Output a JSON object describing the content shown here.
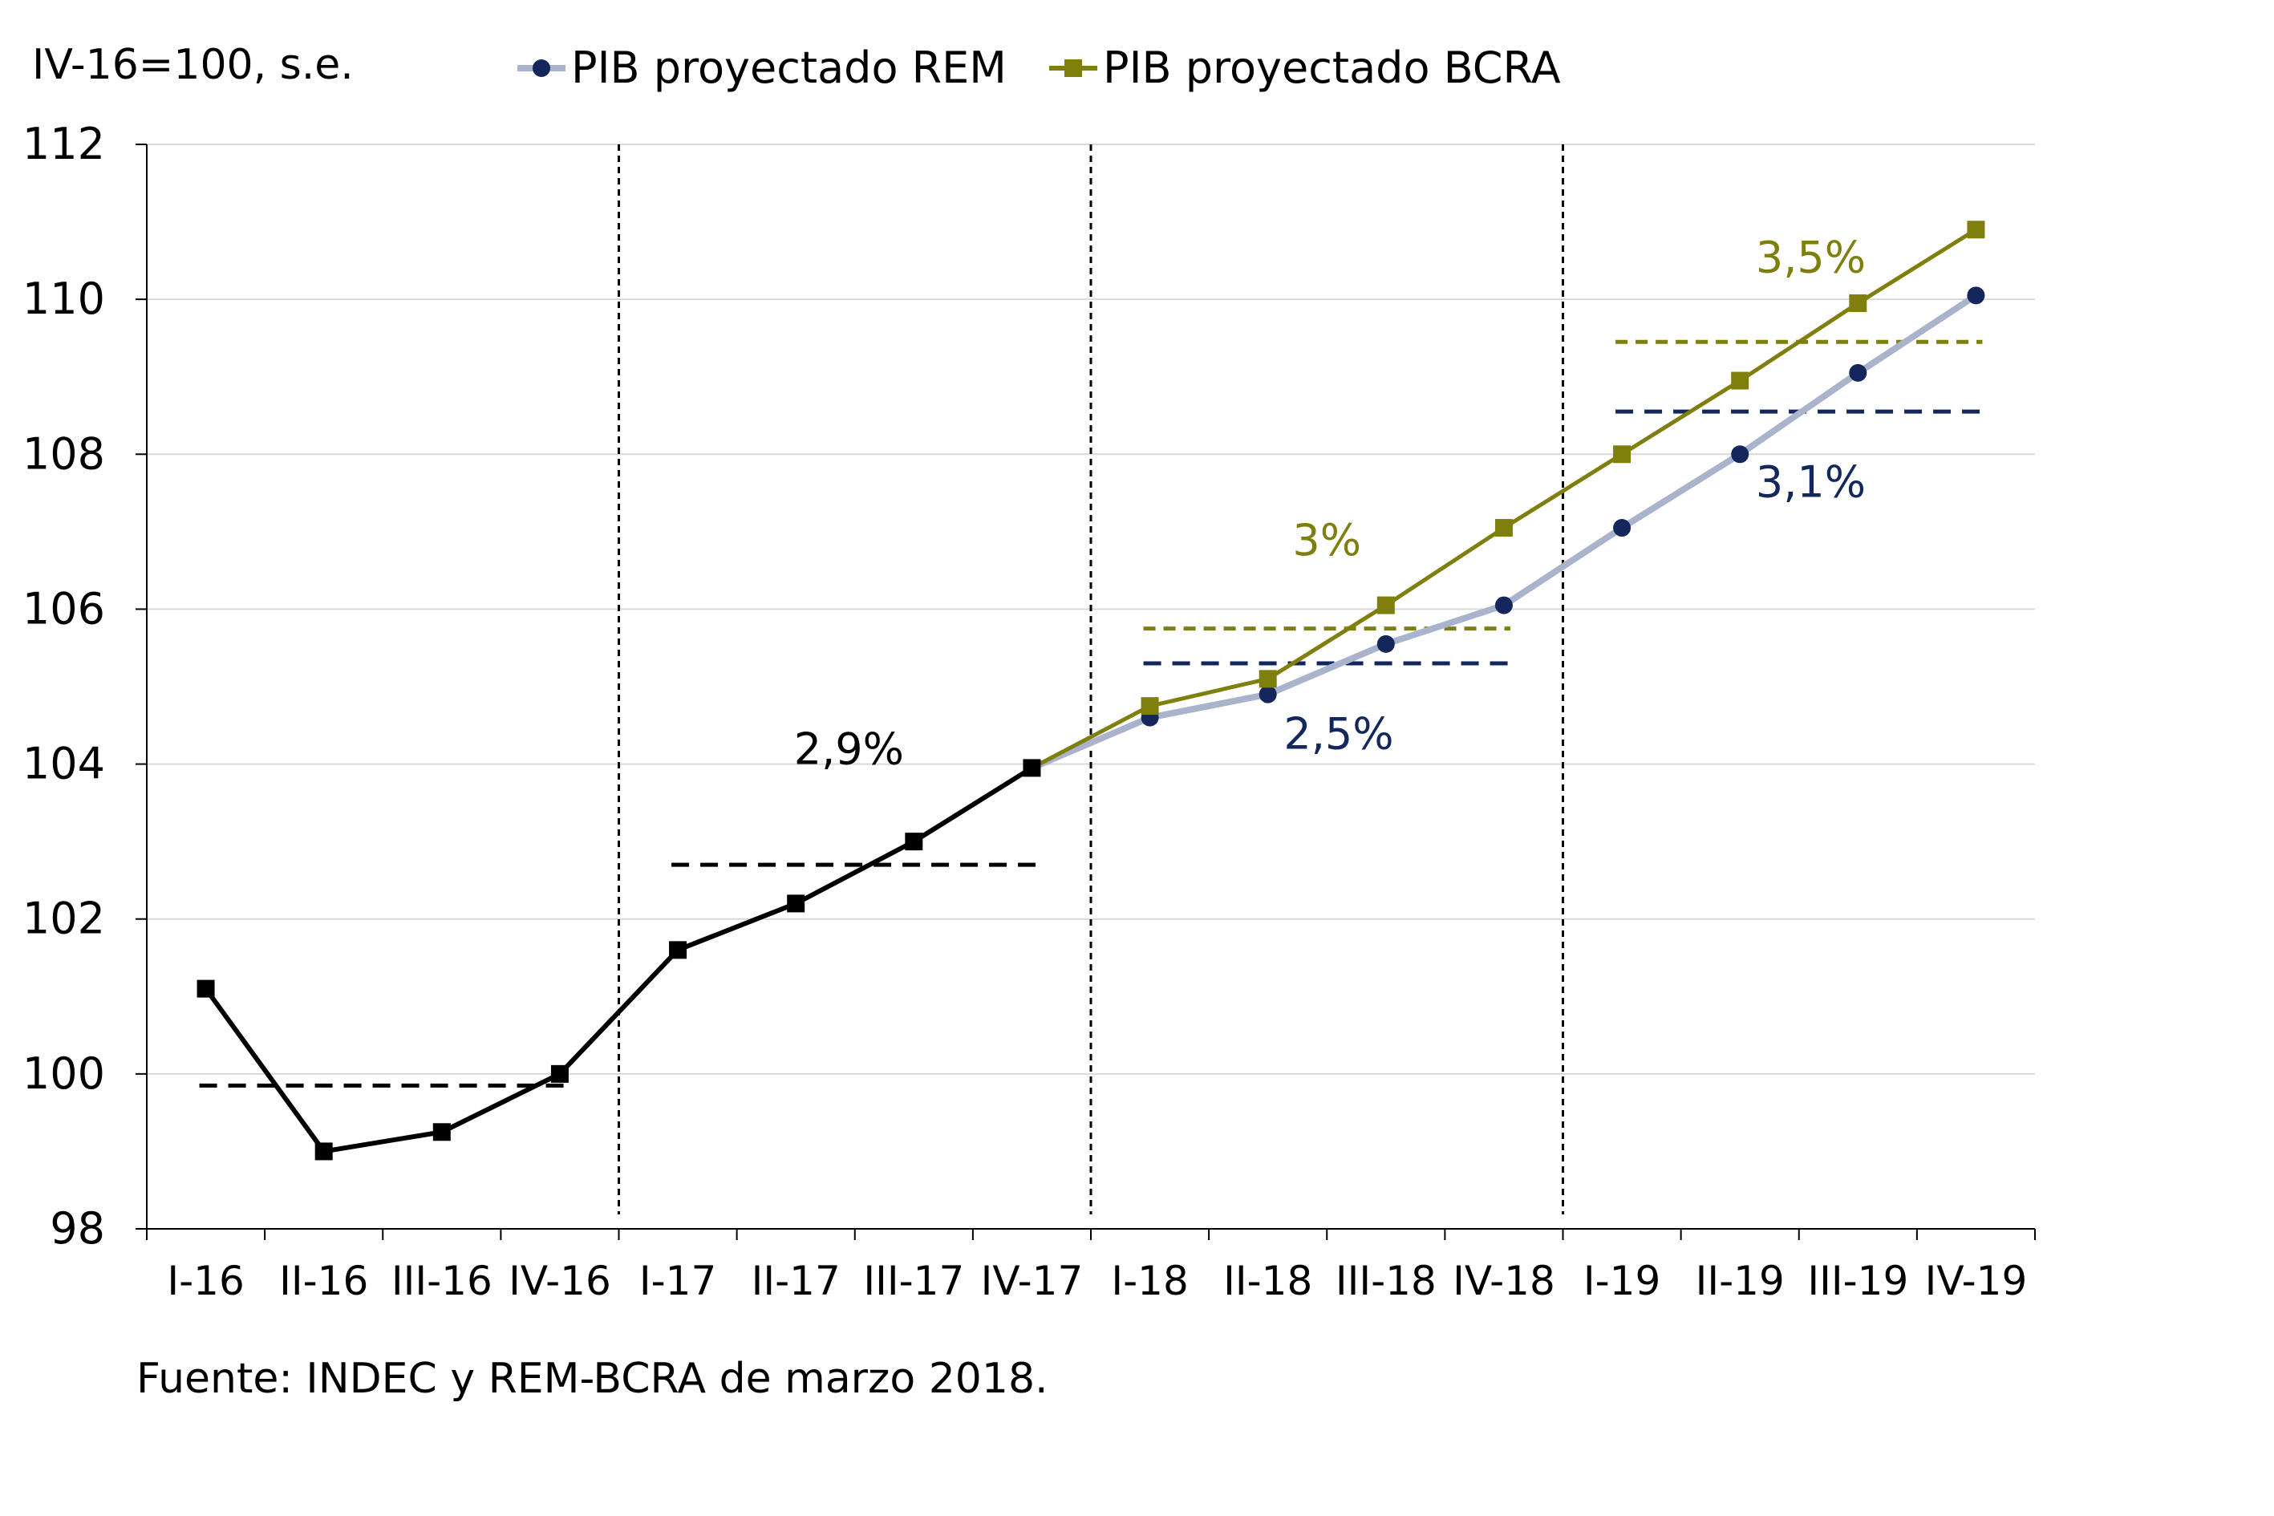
{
  "chart_data": {
    "type": "line",
    "unit_label": "IV-16=100, s.e.",
    "source": "Fuente: INDEC y REM-BCRA de marzo 2018.",
    "categories": [
      "I-16",
      "II-16",
      "III-16",
      "IV-16",
      "I-17",
      "II-17",
      "III-17",
      "IV-17",
      "I-18",
      "II-18",
      "III-18",
      "IV-18",
      "I-19",
      "II-19",
      "III-19",
      "IV-19"
    ],
    "ylim": [
      98,
      112
    ],
    "yticks": [
      98,
      100,
      102,
      104,
      106,
      108,
      110,
      112
    ],
    "grid": true,
    "legend_position": "top",
    "series": [
      {
        "key": "historical",
        "color": "#000000",
        "marker": "square",
        "values": [
          101.1,
          99.0,
          99.25,
          100.0,
          101.6,
          102.2,
          103.0,
          103.95,
          null,
          null,
          null,
          null,
          null,
          null,
          null,
          null
        ]
      },
      {
        "key": "rem",
        "name": "PIB proyectado REM",
        "color": "#a9b4cc",
        "marker_color": "#13275c",
        "marker": "circle",
        "values": [
          null,
          null,
          null,
          null,
          null,
          null,
          null,
          103.95,
          104.6,
          104.9,
          105.55,
          106.05,
          107.05,
          108.0,
          109.05,
          110.05
        ]
      },
      {
        "key": "bcra",
        "name": "PIB proyectado BCRA",
        "color": "#7f7f0e",
        "marker": "square",
        "values": [
          null,
          null,
          null,
          null,
          null,
          null,
          null,
          103.95,
          104.75,
          105.1,
          106.05,
          107.05,
          108.0,
          108.95,
          109.95,
          110.9
        ]
      }
    ],
    "averages": [
      {
        "series": "historical",
        "from": "I-16",
        "to": "IV-16",
        "value": 99.85,
        "color": "#000000"
      },
      {
        "series": "historical",
        "from": "I-17",
        "to": "IV-17",
        "value": 102.7,
        "color": "#000000"
      },
      {
        "series": "rem",
        "from": "I-18",
        "to": "IV-18",
        "value": 105.3,
        "color": "#13275c"
      },
      {
        "series": "bcra",
        "from": "I-18",
        "to": "IV-18",
        "value": 105.75,
        "color": "#7f7f0e"
      },
      {
        "series": "rem",
        "from": "I-19",
        "to": "IV-19",
        "value": 108.55,
        "color": "#13275c"
      },
      {
        "series": "bcra",
        "from": "I-19",
        "to": "IV-19",
        "value": 109.45,
        "color": "#7f7f0e"
      }
    ],
    "year_separators_after": [
      "IV-16",
      "IV-17",
      "IV-18"
    ],
    "annotations": [
      {
        "text": "2,9%",
        "color": "#000000",
        "x_category": "III-17",
        "x_shift": -0.55,
        "y": 104.0
      },
      {
        "text": "3%",
        "color": "#7f7f0e",
        "x_category": "II-18",
        "x_shift": 0.5,
        "y": 106.7
      },
      {
        "text": "2,5%",
        "color": "#13275c",
        "x_category": "II-18",
        "x_shift": 0.6,
        "y": 104.2
      },
      {
        "text": "3,5%",
        "color": "#7f7f0e",
        "x_category": "III-19",
        "x_shift": -0.4,
        "y": 110.35
      },
      {
        "text": "3,1%",
        "color": "#13275c",
        "x_category": "II-19",
        "x_shift": 0.6,
        "y": 107.45
      }
    ]
  }
}
